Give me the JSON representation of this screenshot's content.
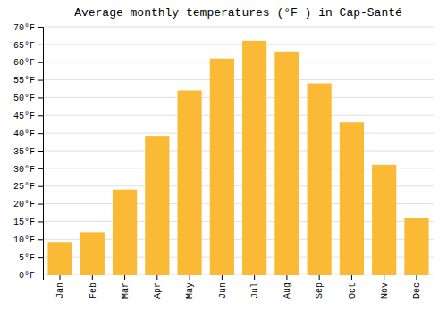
{
  "chart_data": {
    "type": "bar",
    "title": "Average monthly temperatures (°F ) in Cap-Santé",
    "categories": [
      "Jan",
      "Feb",
      "Mar",
      "Apr",
      "May",
      "Jun",
      "Jul",
      "Aug",
      "Sep",
      "Oct",
      "Nov",
      "Dec"
    ],
    "values": [
      9,
      12,
      24,
      39,
      52,
      61,
      66,
      63,
      54,
      43,
      31,
      16
    ],
    "color": "#FBBA35",
    "ylim": [
      0,
      70
    ],
    "yticks": [
      {
        "value": 0,
        "label": "0°F"
      },
      {
        "value": 5,
        "label": "5°F"
      },
      {
        "value": 10,
        "label": "10°F"
      },
      {
        "value": 15,
        "label": "15°F"
      },
      {
        "value": 20,
        "label": "20°F"
      },
      {
        "value": 25,
        "label": "25°F"
      },
      {
        "value": 30,
        "label": "30°F"
      },
      {
        "value": 35,
        "label": "35°F"
      },
      {
        "value": 40,
        "label": "40°F"
      },
      {
        "value": 45,
        "label": "45°F"
      },
      {
        "value": 50,
        "label": "50°F"
      },
      {
        "value": 55,
        "label": "55°F"
      },
      {
        "value": 60,
        "label": "60°F"
      },
      {
        "value": 65,
        "label": "65°F"
      },
      {
        "value": 70,
        "label": "70°F"
      }
    ],
    "grid": true
  }
}
